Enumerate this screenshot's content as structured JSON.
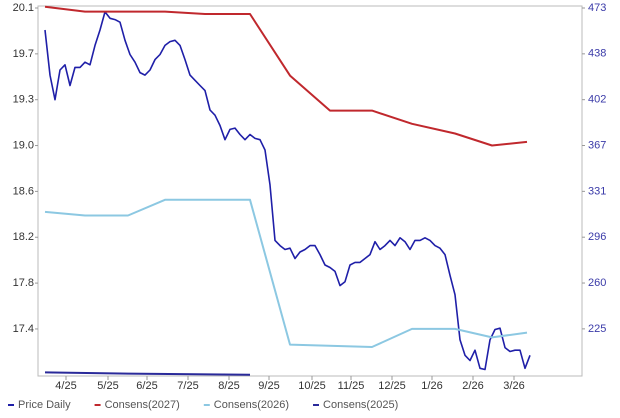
{
  "chart_data": {
    "type": "line",
    "xlim": [
      -1.4,
      107.4
    ],
    "xticks": [
      {
        "value": 4.2,
        "label": "4/25"
      },
      {
        "value": 12.6,
        "label": "5/25"
      },
      {
        "value": 20.4,
        "label": "6/25"
      },
      {
        "value": 28.6,
        "label": "7/25"
      },
      {
        "value": 36.8,
        "label": "8/25"
      },
      {
        "value": 44.8,
        "label": "9/25"
      },
      {
        "value": 53.4,
        "label": "10/25"
      },
      {
        "value": 61.2,
        "label": "11/25"
      },
      {
        "value": 69.4,
        "label": "12/25"
      },
      {
        "value": 77.4,
        "label": "1/26"
      },
      {
        "value": 85.6,
        "label": "2/26"
      },
      {
        "value": 93.8,
        "label": "3/26"
      }
    ],
    "ylim": [
      17.05,
      20.1
    ],
    "yticks": [
      {
        "value": 20.1,
        "label": "20.1"
      },
      {
        "value": 19.72,
        "label": "19.7"
      },
      {
        "value": 19.34,
        "label": "19.3"
      },
      {
        "value": 18.96,
        "label": "19.0"
      },
      {
        "value": 18.58,
        "label": "18.6"
      },
      {
        "value": 18.2,
        "label": "18.2"
      },
      {
        "value": 17.82,
        "label": "17.8"
      },
      {
        "value": 17.44,
        "label": "17.4"
      }
    ],
    "y2lim": [
      188,
      473
    ],
    "y2ticks": [
      473,
      {
        "value": 437.5,
        "label": "438"
      },
      402,
      {
        "value": 366.5,
        "label": "367"
      },
      331,
      {
        "value": 295.5,
        "label": "296"
      },
      260,
      {
        "value": 224.5,
        "label": "225"
      }
    ],
    "series": [
      {
        "name": "Price Daily",
        "color": "#1f1fa8",
        "axis": "y2",
        "values": [
          456,
          421,
          402,
          425,
          429,
          413,
          427,
          427,
          431,
          429,
          444,
          456,
          470,
          465,
          464,
          462,
          448,
          437,
          431,
          423,
          421,
          425,
          433,
          437,
          444,
          447,
          448,
          444,
          433,
          421,
          417,
          413,
          409,
          394,
          390,
          382,
          371,
          379,
          380,
          375,
          371,
          375,
          372,
          371,
          363,
          336,
          293,
          289,
          286,
          287,
          279,
          284,
          286,
          289,
          289,
          282,
          274,
          272,
          269,
          258,
          261,
          274,
          276,
          276,
          279,
          282,
          292,
          286,
          289,
          293,
          289,
          295,
          292,
          286,
          293,
          293,
          295,
          293,
          289,
          287,
          282,
          266,
          251,
          216,
          204,
          200,
          208,
          194,
          193,
          216,
          224,
          225,
          210,
          207,
          208,
          208,
          194,
          204
        ]
      },
      {
        "name": "Consens(2027)",
        "color": "#c0282d",
        "x": [
          0,
          8,
          24,
          32,
          41,
          49,
          57,
          65.4,
          73.4,
          82,
          89.4,
          96.4
        ],
        "values": [
          20.11,
          20.07,
          20.07,
          20.05,
          20.05,
          19.54,
          19.25,
          19.25,
          19.14,
          19.06,
          18.96,
          18.99
        ]
      },
      {
        "name": "Consens(2026)",
        "color": "#8cc8e2",
        "x": [
          0,
          8,
          16.6,
          24,
          41,
          49,
          65.4,
          73.4,
          82,
          89.4,
          96.4
        ],
        "values": [
          18.41,
          18.38,
          18.38,
          18.51,
          18.51,
          17.31,
          17.29,
          17.44,
          17.44,
          17.37,
          17.41
        ]
      },
      {
        "name": "Consens(2025)",
        "color": "#2a2a9a",
        "x": [
          0,
          16.6,
          41
        ],
        "values": [
          17.08,
          17.07,
          17.06
        ]
      }
    ]
  }
}
